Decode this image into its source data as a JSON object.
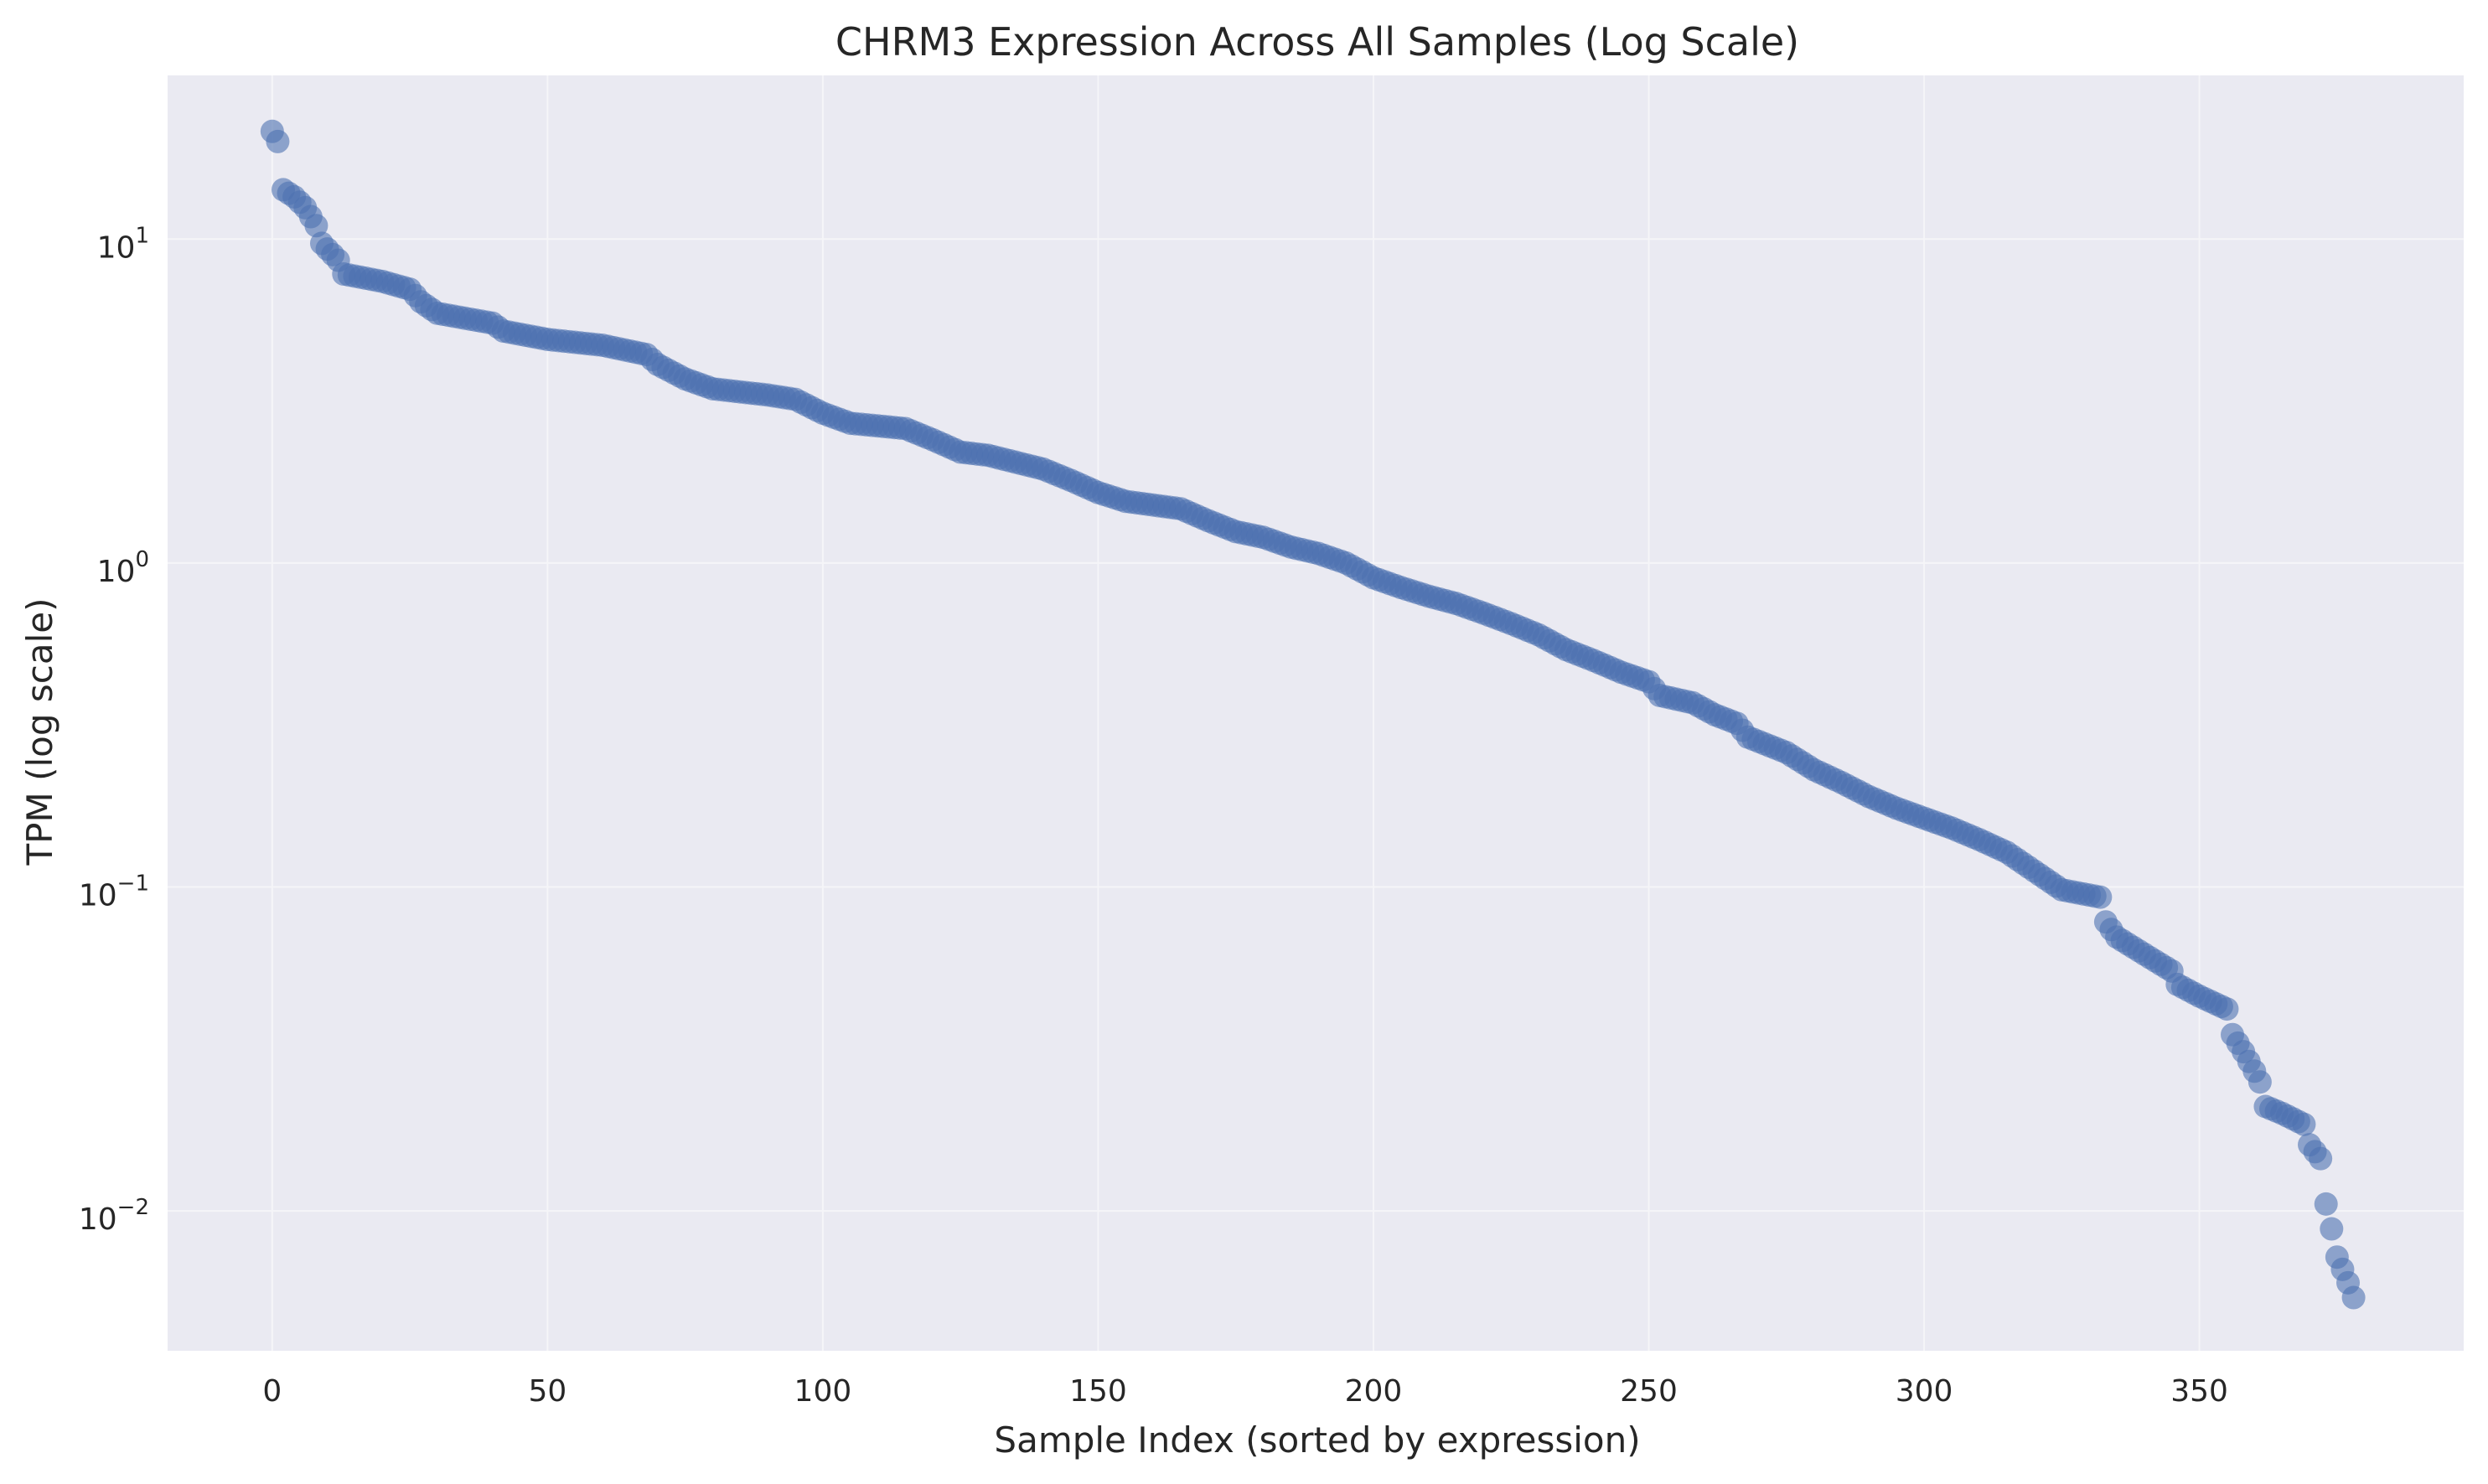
{
  "chart_data": {
    "type": "scatter",
    "title": "CHRM3 Expression Across All Samples (Log Scale)",
    "xlabel": "Sample Index (sorted by expression)",
    "ylabel": "TPM (log scale)",
    "xscale": "linear",
    "yscale": "log",
    "xlim": [
      -19,
      398
    ],
    "ylim": [
      0.0037,
      32
    ],
    "xticks": [
      0,
      50,
      100,
      150,
      200,
      250,
      300,
      350
    ],
    "xtick_labels": [
      "0",
      "50",
      "100",
      "150",
      "200",
      "250",
      "300",
      "350"
    ],
    "yticks": [
      0.01,
      0.1,
      1,
      10
    ],
    "ytick_labels": [
      {
        "base": "10",
        "exp": "−2"
      },
      {
        "base": "10",
        "exp": "−1"
      },
      {
        "base": "10",
        "exp": "0"
      },
      {
        "base": "10",
        "exp": "1"
      }
    ],
    "grid": true,
    "legend": false,
    "n_points": 379,
    "key_points": [
      [
        0,
        21.5
      ],
      [
        1,
        20
      ],
      [
        2,
        14.2
      ],
      [
        4,
        13.5
      ],
      [
        6,
        12.5
      ],
      [
        8,
        11
      ],
      [
        9,
        9.7
      ],
      [
        12,
        8.6
      ],
      [
        13,
        7.8
      ],
      [
        20,
        7.4
      ],
      [
        25,
        7.0
      ],
      [
        27,
        6.4
      ],
      [
        30,
        5.9
      ],
      [
        40,
        5.5
      ],
      [
        42,
        5.2
      ],
      [
        50,
        4.9
      ],
      [
        60,
        4.7
      ],
      [
        68,
        4.4
      ],
      [
        70,
        4.1
      ],
      [
        75,
        3.7
      ],
      [
        80,
        3.45
      ],
      [
        90,
        3.3
      ],
      [
        95,
        3.2
      ],
      [
        100,
        2.9
      ],
      [
        105,
        2.7
      ],
      [
        115,
        2.6
      ],
      [
        120,
        2.4
      ],
      [
        125,
        2.2
      ],
      [
        130,
        2.15
      ],
      [
        140,
        1.95
      ],
      [
        145,
        1.8
      ],
      [
        150,
        1.65
      ],
      [
        155,
        1.55
      ],
      [
        165,
        1.47
      ],
      [
        170,
        1.35
      ],
      [
        175,
        1.25
      ],
      [
        180,
        1.2
      ],
      [
        185,
        1.12
      ],
      [
        190,
        1.07
      ],
      [
        195,
        1.0
      ],
      [
        200,
        0.9
      ],
      [
        205,
        0.84
      ],
      [
        210,
        0.79
      ],
      [
        215,
        0.75
      ],
      [
        220,
        0.7
      ],
      [
        225,
        0.65
      ],
      [
        230,
        0.6
      ],
      [
        235,
        0.54
      ],
      [
        240,
        0.5
      ],
      [
        245,
        0.46
      ],
      [
        250,
        0.43
      ],
      [
        252,
        0.39
      ],
      [
        258,
        0.37
      ],
      [
        262,
        0.34
      ],
      [
        266,
        0.32
      ],
      [
        268,
        0.29
      ],
      [
        275,
        0.26
      ],
      [
        280,
        0.23
      ],
      [
        285,
        0.21
      ],
      [
        290,
        0.19
      ],
      [
        295,
        0.175
      ],
      [
        300,
        0.163
      ],
      [
        305,
        0.152
      ],
      [
        310,
        0.14
      ],
      [
        315,
        0.128
      ],
      [
        320,
        0.112
      ],
      [
        325,
        0.098
      ],
      [
        332,
        0.093
      ],
      [
        333,
        0.078
      ],
      [
        335,
        0.07
      ],
      [
        340,
        0.062
      ],
      [
        345,
        0.055
      ],
      [
        346,
        0.05
      ],
      [
        350,
        0.046
      ],
      [
        355,
        0.042
      ],
      [
        356,
        0.035
      ],
      [
        358,
        0.031
      ],
      [
        360,
        0.027
      ],
      [
        361,
        0.025
      ],
      [
        362,
        0.021
      ],
      [
        365,
        0.02
      ],
      [
        369,
        0.0185
      ],
      [
        370,
        0.016
      ],
      [
        372,
        0.0145
      ],
      [
        373,
        0.0105
      ],
      [
        374,
        0.0088
      ],
      [
        375,
        0.0072
      ],
      [
        376,
        0.0066
      ],
      [
        377,
        0.006
      ],
      [
        378,
        0.0054
      ]
    ],
    "point_color": "#4c72b0",
    "point_alpha": 0.6,
    "background_color": "#eaeaf2",
    "grid_color": "#f5f5f8"
  }
}
